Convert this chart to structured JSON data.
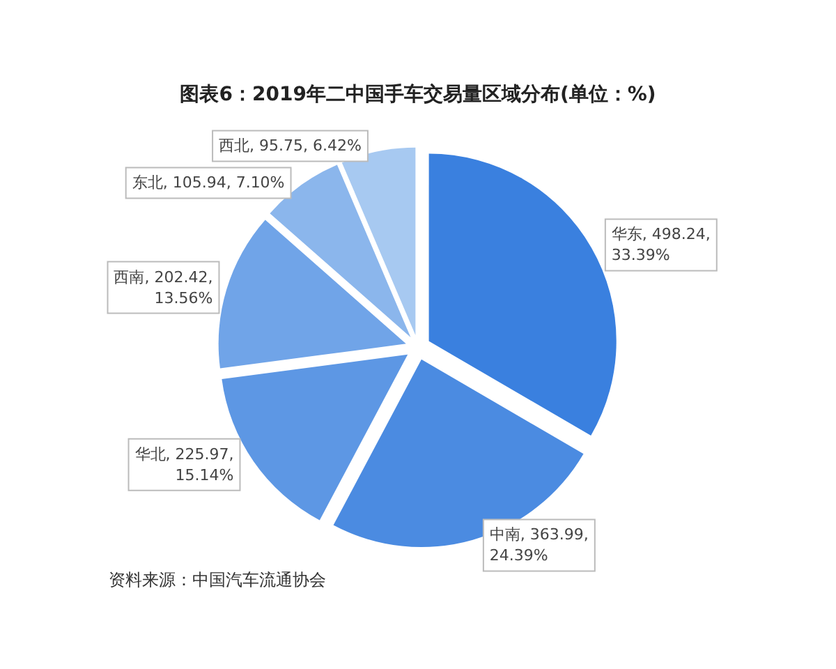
{
  "chart_data": {
    "type": "pie",
    "title": "图表6：2019年二中国手车交易量区域分布(单位：%)",
    "categories": [
      "华东",
      "中南",
      "华北",
      "西南",
      "东北",
      "西北"
    ],
    "values": [
      498.24,
      363.99,
      225.97,
      202.42,
      105.94,
      95.75
    ],
    "value_labels": [
      "498.24,\n33.39%",
      "363.99,\n24.39%",
      "225.97,\n15.14%",
      "202.42,\n13.56%",
      "105.94, 7.10%",
      "95.75, 6.42%"
    ],
    "colors": [
      "#3a80df",
      "#4b8be1",
      "#5d97e4",
      "#70a4e8",
      "#8bb6ec",
      "#a7c9f1"
    ],
    "annotations": [
      "资料来源：中国汽车流通协会"
    ],
    "legend": false
  }
}
